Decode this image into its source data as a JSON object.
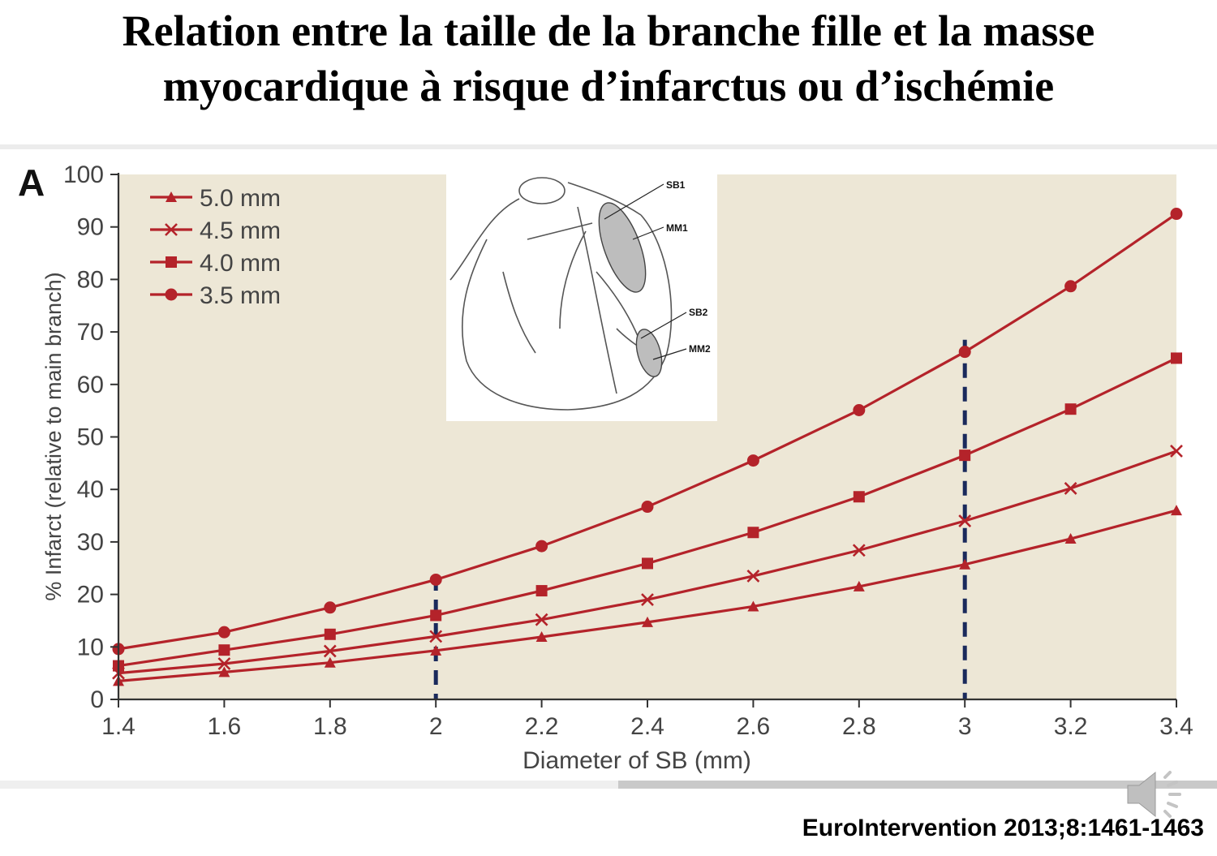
{
  "slide": {
    "title_line1": "Relation entre la taille de la branche fille et la masse",
    "title_line2": "myocardique à risque d’infarctus ou d’ischémie",
    "panel_label": "A",
    "citation": "EuroIntervention 2013;8:1461-1463"
  },
  "inset": {
    "labels": [
      "SB1",
      "MM1",
      "SB2",
      "MM2"
    ]
  },
  "colors": {
    "series": "#b4232a",
    "plot_bg": "#ede7d6",
    "marker_lines": "#1a2a5c"
  },
  "icons": [
    "speaker-icon",
    "heart-illustration"
  ],
  "chart_data": {
    "type": "line",
    "xlabel": "Diameter of SB (mm)",
    "ylabel": "% Infarct (relative to main branch)",
    "xlim": [
      1.4,
      3.4
    ],
    "ylim": [
      0,
      100
    ],
    "x_ticks": [
      1.4,
      1.6,
      1.8,
      2,
      2.2,
      2.4,
      2.6,
      2.8,
      3,
      3.2,
      3.4
    ],
    "y_ticks": [
      0,
      10,
      20,
      30,
      40,
      50,
      60,
      70,
      80,
      90,
      100
    ],
    "legend_position": "top-left",
    "x": [
      1.4,
      1.6,
      1.8,
      2.0,
      2.2,
      2.4,
      2.6,
      2.8,
      3.0,
      3.2,
      3.4
    ],
    "series": [
      {
        "name": "5.0 mm",
        "marker": "triangle",
        "values": [
          3.5,
          5.2,
          7.0,
          9.3,
          11.9,
          14.7,
          17.7,
          21.5,
          25.7,
          30.6,
          36.0
        ]
      },
      {
        "name": "4.5 mm",
        "marker": "x",
        "values": [
          5.0,
          6.8,
          9.2,
          12.0,
          15.2,
          19.0,
          23.5,
          28.4,
          34.0,
          40.2,
          47.3
        ]
      },
      {
        "name": "4.0 mm",
        "marker": "square",
        "values": [
          6.4,
          9.4,
          12.4,
          16.0,
          20.7,
          25.9,
          31.8,
          38.6,
          46.5,
          55.3,
          65.0
        ]
      },
      {
        "name": "3.5 mm",
        "marker": "circle",
        "values": [
          9.6,
          12.8,
          17.5,
          22.8,
          29.2,
          36.7,
          45.5,
          55.1,
          66.2,
          78.7,
          92.5
        ]
      }
    ],
    "reference_lines_x": [
      2,
      3
    ],
    "grid": false
  }
}
